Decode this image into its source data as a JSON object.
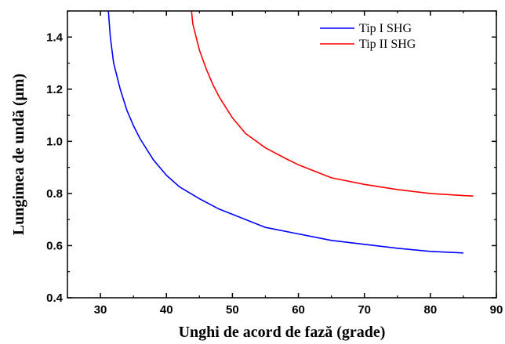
{
  "chart_data": {
    "type": "line",
    "xlabel": "Unghi de acord de fază (grade)",
    "ylabel": "Lungimea de undă (μm)",
    "xlim": [
      25,
      90
    ],
    "ylim": [
      0.4,
      1.5
    ],
    "xticks": [
      30,
      40,
      50,
      60,
      70,
      80,
      90
    ],
    "yticks": [
      0.4,
      0.6,
      0.8,
      1.0,
      1.2,
      1.4
    ],
    "ytick_labels": [
      "0.4",
      "0.6",
      "0.8",
      "1.0",
      "1.2",
      "1.4"
    ],
    "legend_position": "top-right",
    "grid": false,
    "series": [
      {
        "name": "Tip I SHG",
        "color": "#0000ff",
        "x": [
          31.2,
          31.5,
          32,
          33,
          34,
          35,
          36,
          38,
          40,
          42,
          45,
          48,
          50,
          55,
          60,
          65,
          70,
          75,
          80,
          85
        ],
        "y": [
          1.5,
          1.4,
          1.3,
          1.2,
          1.12,
          1.06,
          1.01,
          0.93,
          0.87,
          0.825,
          0.78,
          0.74,
          0.72,
          0.67,
          0.645,
          0.62,
          0.605,
          0.59,
          0.578,
          0.572
        ]
      },
      {
        "name": "Tip II SHG",
        "color": "#ff0000",
        "x": [
          43.8,
          44,
          45,
          46,
          47,
          48,
          50,
          52,
          55,
          58,
          60,
          65,
          70,
          75,
          80,
          85,
          86.5
        ],
        "y": [
          1.5,
          1.45,
          1.35,
          1.28,
          1.22,
          1.17,
          1.09,
          1.03,
          0.975,
          0.935,
          0.91,
          0.86,
          0.835,
          0.815,
          0.8,
          0.792,
          0.79
        ]
      }
    ]
  }
}
